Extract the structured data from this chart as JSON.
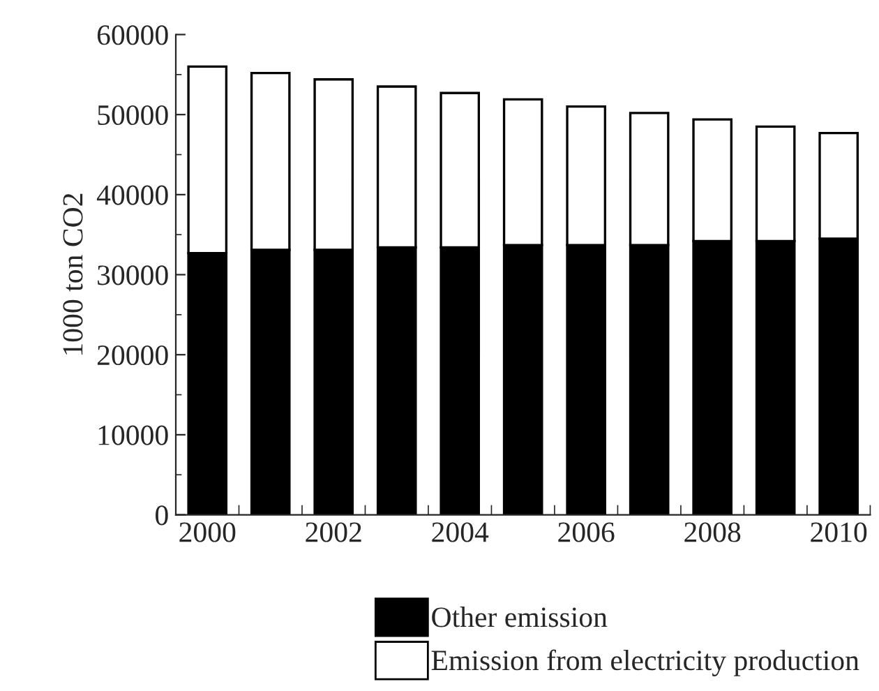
{
  "chart_data": {
    "type": "bar",
    "stacked": true,
    "ylabel": "1000 ton CO2",
    "categories": [
      "2000",
      null,
      "2002",
      null,
      "2004",
      null,
      "2006",
      null,
      "2008",
      null,
      "2010"
    ],
    "series": [
      {
        "name": "Other emission",
        "color": "#000000",
        "values": [
          32700,
          33100,
          33100,
          33400,
          33400,
          33700,
          33700,
          33700,
          34200,
          34200,
          34500
        ]
      },
      {
        "name": "Emission from electricity production",
        "color": "#ffffff",
        "values": [
          23300,
          22100,
          21300,
          20100,
          19300,
          18200,
          17300,
          16500,
          15200,
          14300,
          13200
        ]
      }
    ],
    "ylim": [
      0,
      60000
    ],
    "yticks": [
      0,
      10000,
      20000,
      30000,
      40000,
      50000,
      60000
    ],
    "grid": false,
    "legend": "bottom"
  }
}
